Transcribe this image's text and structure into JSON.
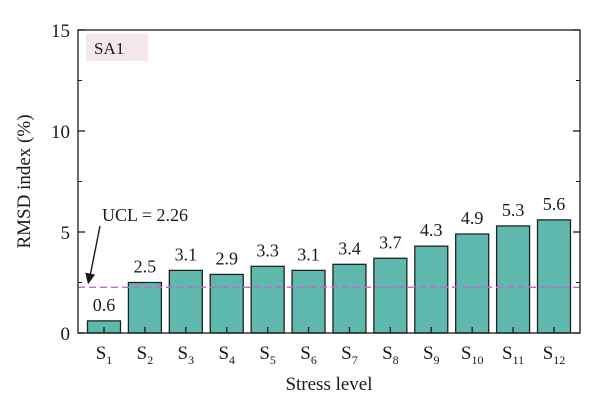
{
  "chart_data": {
    "type": "bar",
    "panel_label": "SA1",
    "categories": [
      {
        "base": "S",
        "sub": "1"
      },
      {
        "base": "S",
        "sub": "2"
      },
      {
        "base": "S",
        "sub": "3"
      },
      {
        "base": "S",
        "sub": "4"
      },
      {
        "base": "S",
        "sub": "5"
      },
      {
        "base": "S",
        "sub": "6"
      },
      {
        "base": "S",
        "sub": "7"
      },
      {
        "base": "S",
        "sub": "8"
      },
      {
        "base": "S",
        "sub": "9"
      },
      {
        "base": "S",
        "sub": "10"
      },
      {
        "base": "S",
        "sub": "11"
      },
      {
        "base": "S",
        "sub": "12"
      }
    ],
    "values": [
      0.6,
      2.5,
      3.1,
      2.9,
      3.3,
      3.1,
      3.4,
      3.7,
      4.3,
      4.9,
      5.3,
      5.6
    ],
    "value_labels": [
      "0.6",
      "2.5",
      "3.1",
      "2.9",
      "3.3",
      "3.1",
      "3.4",
      "3.7",
      "4.3",
      "4.9",
      "5.3",
      "5.6"
    ],
    "xlabel": "Stress level",
    "ylabel": "RMSD index (%)",
    "ylim": [
      0,
      15
    ],
    "yticks": [
      0,
      5,
      10,
      15
    ],
    "grid": false,
    "reference_line": {
      "value": 2.26,
      "label": "UCL = 2.26",
      "style": "dashed",
      "color": "#cc66cc"
    },
    "colors": {
      "bar_fill": "#5fb8ad",
      "bar_stroke": "#222222",
      "panel_tag_bg": "#f6e6ee"
    }
  }
}
